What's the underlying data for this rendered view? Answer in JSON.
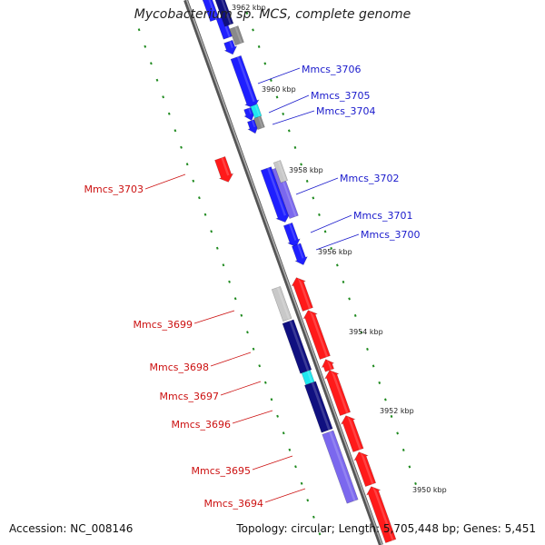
{
  "title": "Mycobacterium sp. MCS, complete genome",
  "accession": "Accession: NC_008146",
  "topology": "Topology: circular; Length: 5,705,448 bp; Genes: 5,451",
  "colors": {
    "forward_label": "#1a1acc",
    "reverse_label": "#cc1111",
    "blue": "#1f1fff",
    "navy": "#101080",
    "slate": "#7b68ee",
    "red": "#ff1a1a",
    "cyan": "#20e8f0",
    "grey": "#8a8a8a",
    "lightgrey": "#c8c8c8",
    "tick": "#1f8a1f"
  },
  "scale_labels": [
    "3962 kbp",
    "3960 kbp",
    "3958 kbp",
    "3956 kbp",
    "3954 kbp",
    "3952 kbp",
    "3950 kbp"
  ],
  "forward_genes": [
    "Mmcs_3706",
    "Mmcs_3705",
    "Mmcs_3704",
    "Mmcs_3702",
    "Mmcs_3701",
    "Mmcs_3700"
  ],
  "reverse_genes": [
    "Mmcs_3703",
    "Mmcs_3699",
    "Mmcs_3698",
    "Mmcs_3697",
    "Mmcs_3696",
    "Mmcs_3695",
    "Mmcs_3694"
  ]
}
